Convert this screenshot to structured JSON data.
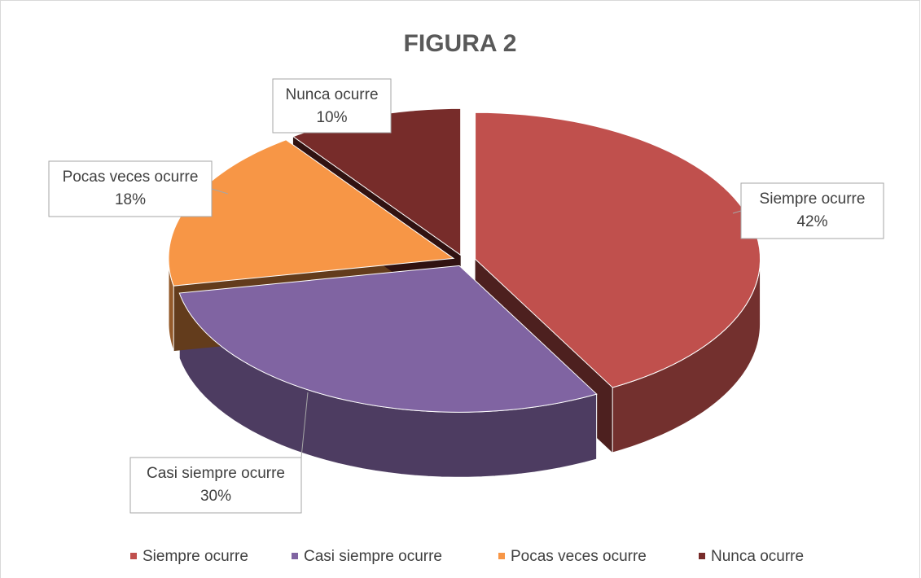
{
  "chart_data": {
    "type": "pie",
    "title": "FIGURA 2",
    "categories": [
      "Siempre ocurre",
      "Casi siempre ocurre",
      "Pocas veces ocurre",
      "Nunca ocurre"
    ],
    "values": [
      42,
      30,
      18,
      10
    ],
    "value_labels": [
      "42%",
      "30%",
      "18%",
      "10%"
    ],
    "colors": [
      "#c0504d",
      "#8064a2",
      "#f79646",
      "#772c2a"
    ],
    "legend": "bottom"
  }
}
